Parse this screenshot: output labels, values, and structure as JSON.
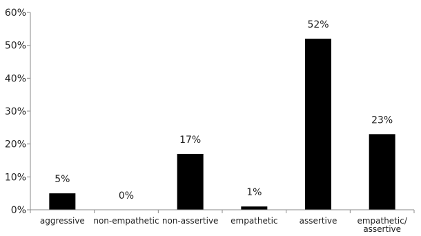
{
  "chart_data": {
    "type": "bar",
    "categories": [
      "aggressive",
      "non-empathetic",
      "non-assertive",
      "empathetic",
      "assertive",
      "empathetic/ assertive"
    ],
    "category_lines": [
      [
        "aggressive"
      ],
      [
        "non-empathetic"
      ],
      [
        "non-assertive"
      ],
      [
        "empathetic"
      ],
      [
        "assertive"
      ],
      [
        "empathetic/",
        "assertive"
      ]
    ],
    "values": [
      5,
      0,
      17,
      1,
      52,
      23
    ],
    "value_labels": [
      "5%",
      "0%",
      "17%",
      "1%",
      "52%",
      "23%"
    ],
    "y_ticks": [
      0,
      10,
      20,
      30,
      40,
      50,
      60
    ],
    "y_tick_labels": [
      "0%",
      "10%",
      "20%",
      "30%",
      "40%",
      "50%",
      "60%"
    ],
    "ylim": [
      0,
      60
    ],
    "grid": false,
    "legend": false,
    "title": "",
    "xlabel": "",
    "ylabel": "",
    "bar_color": "#000000"
  }
}
